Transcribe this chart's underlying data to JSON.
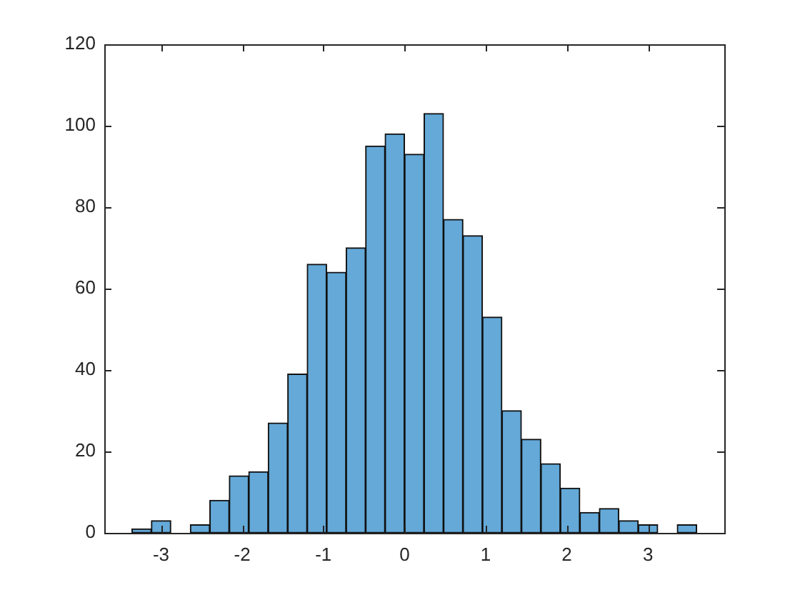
{
  "chart_data": {
    "type": "histogram",
    "bins": [
      -3.36,
      -3.12,
      -2.88,
      -2.64,
      -2.4,
      -2.16,
      -1.92,
      -1.68,
      -1.44,
      -1.2,
      -0.96,
      -0.72,
      -0.48,
      -0.24,
      0,
      0.24,
      0.48,
      0.72,
      0.96,
      1.2,
      1.44,
      1.68,
      1.92,
      2.16,
      2.4,
      2.64,
      2.88,
      3.12,
      3.36,
      3.6
    ],
    "values": [
      1,
      3,
      0,
      2,
      8,
      14,
      15,
      27,
      39,
      66,
      64,
      70,
      95,
      98,
      93,
      103,
      77,
      73,
      53,
      30,
      23,
      17,
      11,
      5,
      6,
      3,
      2,
      0,
      2
    ],
    "color": "#64a9d8",
    "xlim": [
      -3.7,
      3.94
    ],
    "xticks": [
      -3,
      -2,
      -1,
      0,
      1,
      2,
      3
    ],
    "ylim": [
      0,
      120
    ],
    "yticks": [
      0,
      20,
      40,
      60,
      80,
      100,
      120
    ]
  }
}
